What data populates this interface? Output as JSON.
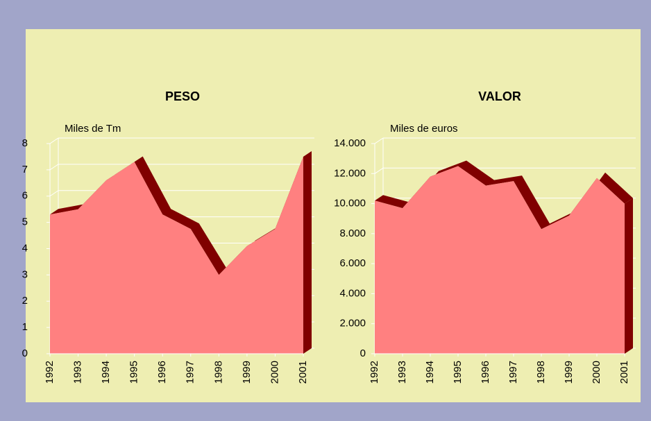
{
  "chart_data": [
    {
      "type": "area",
      "title": "PESO",
      "ylabel": "Miles de Tm",
      "categories": [
        "1992",
        "1993",
        "1994",
        "1995",
        "1996",
        "1997",
        "1998",
        "1999",
        "2000",
        "2001"
      ],
      "values": [
        5.3,
        5.5,
        6.6,
        7.3,
        5.3,
        4.75,
        3.0,
        4.1,
        4.75,
        7.5
      ],
      "color": "#ff8080",
      "edge_color": "#800000",
      "ylim": [
        0,
        8
      ],
      "yticks": [
        0,
        1,
        2,
        3,
        4,
        5,
        6,
        7,
        8
      ],
      "grid": true
    },
    {
      "type": "area",
      "title": "VALOR",
      "ylabel": "Miles de euros",
      "categories": [
        "1992",
        "1993",
        "1994",
        "1995",
        "1996",
        "1997",
        "1998",
        "1999",
        "2000",
        "2001"
      ],
      "values": [
        10200,
        9700,
        11800,
        12500,
        11200,
        11500,
        8300,
        9200,
        11700,
        10000
      ],
      "color": "#ff8080",
      "edge_color": "#800000",
      "ylim": [
        0,
        14000
      ],
      "yticks": [
        0,
        {
          "value": 2000,
          "label": "2.000"
        },
        {
          "value": 4000,
          "label": "4.000"
        },
        {
          "value": 6000,
          "label": "6.000"
        },
        {
          "value": 8000,
          "label": "8.000"
        },
        {
          "value": 10000,
          "label": "10.000"
        },
        {
          "value": 12000,
          "label": "12.000"
        },
        {
          "value": 14000,
          "label": "14.000"
        }
      ],
      "grid": true
    }
  ]
}
